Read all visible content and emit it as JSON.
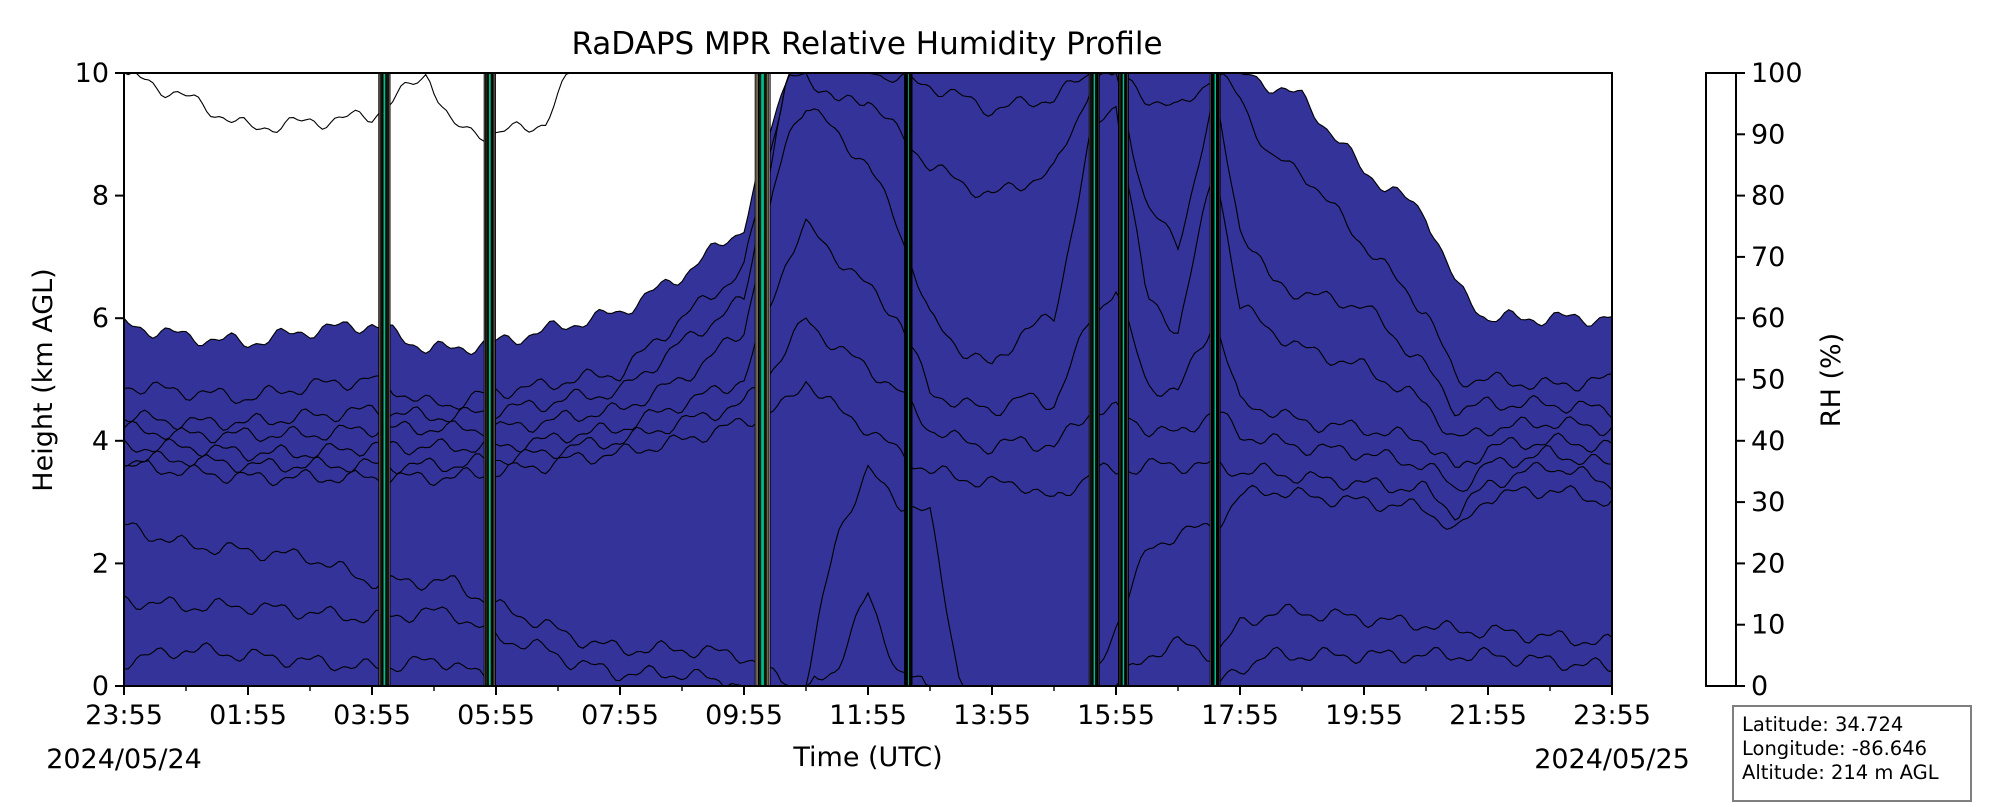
{
  "chart_data": {
    "type": "heatmap",
    "subtype": "filled-contour",
    "title": "RaDAPS MPR Relative Humidity Profile",
    "xlabel": "Time (UTC)",
    "ylabel": "Height (km AGL)",
    "colorbar_label": "RH (%)",
    "x_ticks": [
      "23:55",
      "01:55",
      "03:55",
      "05:55",
      "07:55",
      "09:55",
      "11:55",
      "13:55",
      "15:55",
      "17:55",
      "19:55",
      "21:55",
      "23:55"
    ],
    "x_minor_ticks": 24,
    "start_date": "2024/05/24",
    "end_date": "2024/05/25",
    "ylim": [
      0,
      10
    ],
    "y_ticks": [
      "0",
      "2",
      "4",
      "6",
      "8",
      "10"
    ],
    "levels": [
      0,
      10,
      20,
      30,
      40,
      50,
      60,
      70,
      80,
      90,
      100
    ],
    "level_labels": [
      "0",
      "10",
      "20",
      "30",
      "40",
      "50",
      "60",
      "70",
      "80",
      "90",
      "100"
    ],
    "level_colors": [
      "#ffffff",
      "#c6b6b3",
      "#8e7167",
      "#a88f63",
      "#e1d886",
      "#c8f08a",
      "#53db74",
      "#00bf8c",
      "#0a81e6",
      "#333399"
    ],
    "time_hours": [
      0,
      1,
      2,
      3,
      4,
      4.9,
      5.3,
      6,
      6.8,
      7.2,
      8,
      9,
      10,
      10.7,
      11,
      11.5,
      12,
      12.5,
      13,
      13.5,
      14,
      14.5,
      15,
      15.6,
      16,
      16.5,
      17,
      17.6,
      18,
      18.5,
      19,
      20,
      21,
      21.5,
      22,
      23,
      24
    ],
    "contour_heights_km": [
      [
        10.0,
        5.9,
        4.9,
        4.4,
        4.2,
        3.9,
        3.7,
        3.6,
        2.6,
        1.4,
        0.4
      ],
      [
        9.6,
        5.7,
        4.8,
        4.3,
        4.1,
        3.9,
        3.7,
        3.5,
        2.3,
        1.3,
        0.6
      ],
      [
        9.1,
        5.6,
        4.7,
        4.3,
        4.1,
        3.8,
        3.6,
        3.4,
        2.2,
        1.3,
        0.5
      ],
      [
        9.2,
        5.8,
        4.9,
        4.4,
        4.1,
        3.8,
        3.6,
        3.4,
        2.1,
        1.2,
        0.4
      ],
      [
        9.3,
        5.9,
        5.0,
        4.5,
        4.2,
        3.9,
        3.6,
        3.4,
        1.7,
        1.1,
        0.3
      ],
      [
        10.0,
        5.5,
        4.6,
        4.4,
        4.2,
        3.9,
        3.6,
        3.4,
        1.7,
        1.2,
        0.4
      ],
      [
        9.1,
        5.5,
        4.6,
        4.4,
        4.2,
        3.9,
        3.6,
        3.4,
        1.7,
        1.2,
        0.4
      ],
      [
        9.0,
        5.6,
        4.8,
        4.5,
        4.2,
        3.9,
        3.7,
        3.5,
        1.3,
        0.8,
        0.0
      ],
      [
        9.2,
        5.8,
        4.9,
        4.6,
        4.3,
        4.0,
        3.8,
        3.6,
        1.0,
        0.6,
        0.0
      ],
      [
        10.0,
        5.9,
        5.0,
        4.7,
        4.4,
        4.1,
        3.9,
        3.7,
        0.8,
        0.4,
        0.0
      ],
      [
        10.0,
        6.1,
        5.1,
        4.8,
        4.5,
        4.2,
        4.0,
        3.8,
        0.6,
        0.2,
        0.0
      ],
      [
        10.0,
        6.7,
        6.0,
        5.6,
        5.0,
        4.6,
        4.3,
        4.0,
        0.6,
        0.2,
        0.0
      ],
      [
        10.0,
        7.5,
        6.8,
        6.3,
        5.8,
        5.0,
        4.6,
        4.3,
        0.5,
        0.0,
        0.0
      ],
      [
        10.0,
        10.0,
        10.0,
        9.9,
        9.0,
        7.0,
        5.5,
        4.6,
        0.0,
        0.0,
        0.0
      ],
      [
        10.0,
        10.0,
        10.0,
        10.0,
        9.5,
        7.5,
        6.0,
        5.0,
        0.0,
        0.0,
        0.0
      ],
      [
        10.0,
        10.0,
        10.0,
        9.5,
        9.0,
        7.0,
        5.5,
        4.5,
        2.5,
        0.3,
        0.0
      ],
      [
        10.0,
        10.0,
        10.0,
        9.6,
        8.5,
        6.5,
        5.2,
        4.2,
        3.5,
        1.5,
        0.0
      ],
      [
        10.0,
        10.0,
        9.9,
        9.0,
        7.5,
        6.0,
        4.8,
        3.8,
        3.0,
        0.2,
        0.0
      ],
      [
        10.0,
        10.0,
        9.8,
        8.5,
        6.0,
        4.8,
        4.2,
        3.5,
        2.8,
        0.0,
        0.0
      ],
      [
        10.0,
        10.0,
        9.6,
        8.2,
        5.5,
        4.6,
        4.0,
        3.4,
        0.0,
        0.0,
        0.0
      ],
      [
        10.0,
        10.0,
        9.4,
        8.0,
        5.2,
        4.5,
        3.9,
        3.3,
        0.0,
        0.0,
        0.0
      ],
      [
        10.0,
        10.0,
        9.5,
        8.2,
        5.8,
        4.7,
        4.0,
        3.3,
        0.0,
        0.0,
        0.0
      ],
      [
        10.0,
        10.0,
        9.6,
        8.4,
        6.0,
        4.6,
        3.9,
        3.0,
        0.0,
        0.0,
        0.0
      ],
      [
        10.0,
        10.0,
        10.0,
        9.8,
        9.0,
        6.0,
        4.5,
        3.5,
        0.0,
        0.0,
        0.0
      ],
      [
        10.0,
        10.0,
        10.0,
        10.0,
        9.5,
        6.5,
        4.5,
        3.5,
        1.0,
        0.0,
        0.0
      ],
      [
        10.0,
        10.0,
        9.6,
        7.8,
        6.3,
        4.9,
        4.2,
        3.6,
        2.2,
        0.5,
        0.0
      ],
      [
        10.0,
        10.0,
        9.4,
        7.2,
        5.8,
        4.8,
        4.1,
        3.6,
        2.5,
        0.7,
        0.0
      ],
      [
        10.0,
        10.0,
        10.0,
        9.6,
        8.5,
        6.0,
        4.5,
        3.6,
        2.6,
        0.5,
        0.0
      ],
      [
        10.0,
        10.0,
        9.6,
        7.5,
        6.2,
        4.6,
        4.1,
        3.5,
        3.1,
        1.0,
        0.3
      ],
      [
        10.0,
        9.8,
        8.6,
        6.6,
        5.8,
        4.5,
        4.0,
        3.5,
        3.2,
        1.2,
        0.5
      ],
      [
        10.0,
        9.6,
        8.4,
        6.4,
        5.5,
        4.3,
        3.9,
        3.4,
        3.1,
        1.2,
        0.5
      ],
      [
        10.0,
        8.4,
        7.2,
        6.2,
        5.2,
        4.2,
        3.8,
        3.3,
        3.0,
        1.1,
        0.5
      ],
      [
        10.0,
        7.7,
        6.1,
        5.2,
        4.6,
        4.0,
        3.6,
        3.2,
        2.9,
        1.0,
        0.5
      ],
      [
        10.0,
        6.5,
        5.0,
        4.5,
        4.0,
        3.5,
        3.2,
        2.8,
        2.5,
        0.9,
        0.5
      ],
      [
        10.0,
        6.0,
        5.0,
        4.6,
        4.2,
        3.9,
        3.6,
        3.3,
        3.1,
        0.9,
        0.5
      ],
      [
        10.0,
        6.0,
        4.9,
        4.6,
        4.3,
        4.0,
        3.8,
        3.6,
        3.2,
        0.8,
        0.4
      ],
      [
        10.0,
        6.0,
        5.0,
        4.5,
        4.2,
        3.9,
        3.6,
        3.3,
        3.0,
        0.7,
        0.3
      ]
    ],
    "spikes": [
      {
        "center_h": 4.2,
        "halfwidth_h": 0.09
      },
      {
        "center_h": 5.9,
        "halfwidth_h": 0.09
      },
      {
        "center_h": 10.3,
        "halfwidth_h": 0.12
      },
      {
        "center_h": 12.65,
        "halfwidth_h": 0.06
      },
      {
        "center_h": 15.65,
        "halfwidth_h": 0.08
      },
      {
        "center_h": 16.12,
        "halfwidth_h": 0.08
      },
      {
        "center_h": 17.6,
        "halfwidth_h": 0.08
      }
    ]
  },
  "info": {
    "latitude": "Latitude: 34.724",
    "longitude": "Longitude: -86.646",
    "altitude": "Altitude: 214 m AGL"
  }
}
